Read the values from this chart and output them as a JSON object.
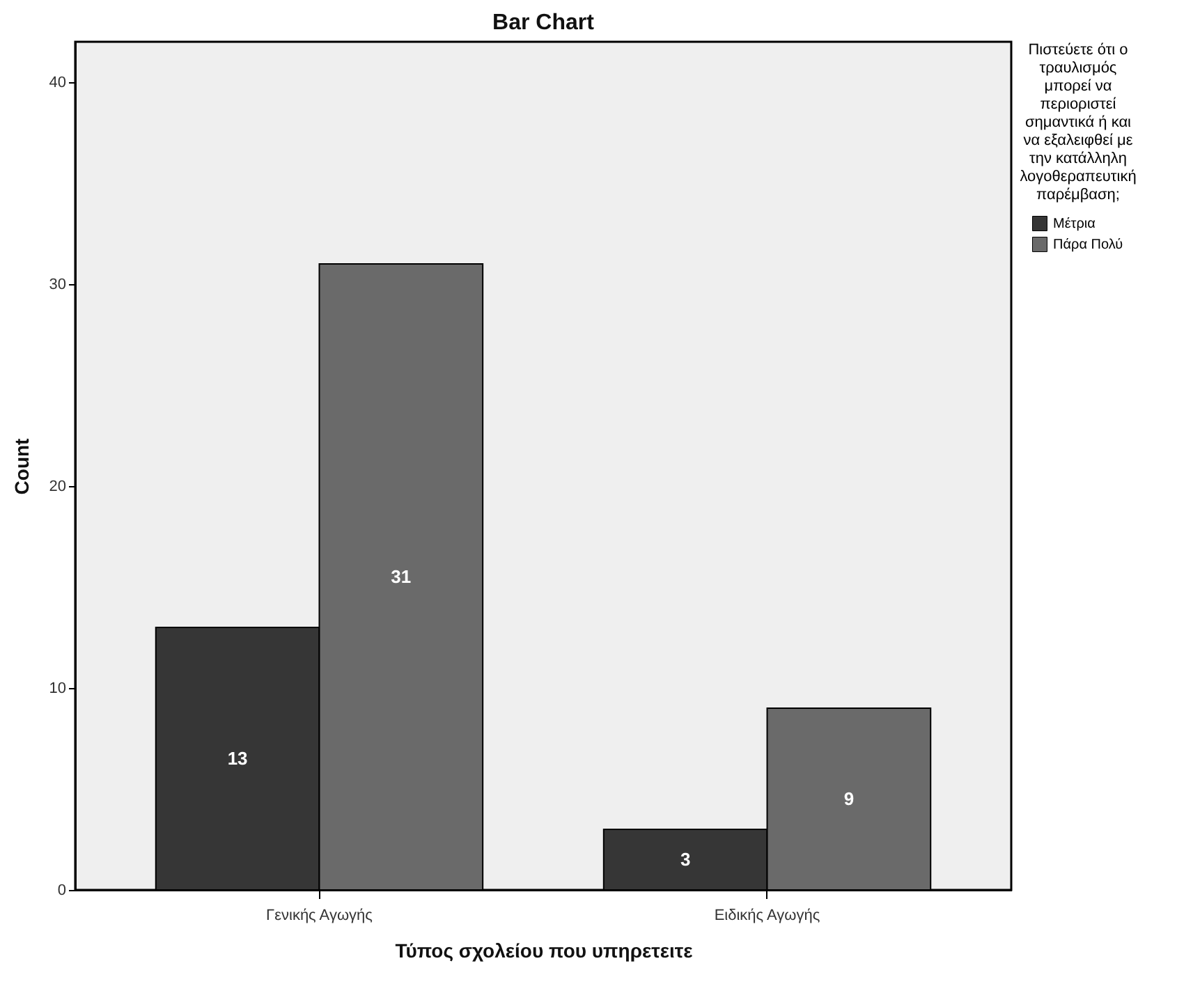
{
  "chart_data": {
    "type": "bar",
    "title": "Bar Chart",
    "xlabel": "Τύπος σχολείου που υπηρετειτε",
    "ylabel": "Count",
    "legend_title": "Πιστεύετε ότι ο τραυλισμός μπορεί να περιοριστεί σημαντικά ή και να εξαλειφθεί με την κατάλληλη λογοθεραπευτική παρέμβαση;",
    "categories": [
      "Γενικής Αγωγής",
      "Ειδικής Αγωγής"
    ],
    "series": [
      {
        "name": "Μέτρια",
        "color": "#363636",
        "values": [
          13,
          3
        ]
      },
      {
        "name": "Πάρα Πολύ",
        "color": "#6a6a6a",
        "values": [
          31,
          9
        ]
      }
    ],
    "ylim": [
      0,
      42
    ],
    "yticks": [
      0,
      10,
      20,
      30,
      40
    ],
    "grid": false,
    "legend": "right",
    "data_labels": true
  }
}
